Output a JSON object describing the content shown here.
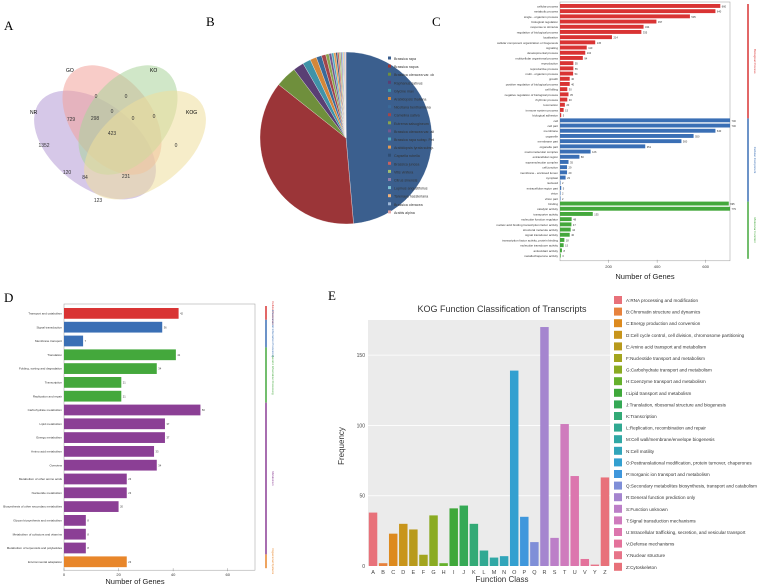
{
  "figure": {
    "panel_letters": [
      "A",
      "B",
      "C",
      "D",
      "E"
    ]
  },
  "chart_data": [
    {
      "type": "venn",
      "panel": "A",
      "sets": [
        "NR",
        "GO",
        "KO",
        "KOG"
      ],
      "colors": [
        "#b49ad6",
        "#f2a39a",
        "#a9d49a",
        "#eedf9c"
      ],
      "region_values": [
        "1352",
        "729",
        "0",
        "0",
        "0",
        "0",
        "298",
        "0",
        "0",
        "423",
        "120",
        "84",
        "231",
        "123"
      ]
    },
    {
      "type": "pie",
      "panel": "B",
      "labels": [
        "Brassica rapa",
        "Brassica napus",
        "Brassica oleracea var. oleracea",
        "Raphanus sativus",
        "Glycine max",
        "Arabidopsis thaliana",
        "Nicotiana benthamiana",
        "Camelina sativa",
        "Eutrema salsugineum",
        "Brassica oleracea var. alboglabra",
        "Brassica rapa subsp. Pekinensis",
        "Arabidopsis lyrata subsp. Lyrata",
        "Capsella rubella",
        "Brassica juncea",
        "Vitis vinifera",
        "Citrus sinensis",
        "Lupinus angustifolius",
        "Tarenaya hassleriana",
        "Brassica oleracea",
        "Arabis alpina"
      ],
      "values": [
        48.5,
        37.0,
        4.0,
        2.0,
        1.5,
        1.2,
        1.0,
        0.8,
        0.6,
        0.5,
        0.4,
        0.4,
        0.3,
        0.3,
        0.3,
        0.25,
        0.2,
        0.2,
        0.2,
        0.15
      ],
      "colors": [
        "#3b5f8e",
        "#9b3538",
        "#6f8f3c",
        "#5a3f74",
        "#3f93a8",
        "#d3873a",
        "#3a6a9a",
        "#a4454a",
        "#8aa44e",
        "#73588f",
        "#4fa6bb",
        "#e39b53",
        "#2f4e75",
        "#c9625f",
        "#a3be71",
        "#8f7dab",
        "#7bbfd0",
        "#f0b27b",
        "#9db7d6",
        "#e6a9a7"
      ]
    },
    {
      "type": "bar",
      "panel": "C",
      "orientation": "horizontal",
      "xlabel": "Number of Genes",
      "xticks": [
        "200",
        "400",
        "600"
      ],
      "xlim": [
        0,
        700
      ],
      "groups": [
        {
          "name": "Biological Process",
          "color": "#d93434"
        },
        {
          "name": "Cellular Component",
          "color": "#3a6fb5"
        },
        {
          "name": "Molecular Function",
          "color": "#44a83c"
        }
      ],
      "categories": [
        "cellular process",
        "metabolic process",
        "single - organism process",
        "biological regulation",
        "response to stimulus",
        "regulation of biological process",
        "localization",
        "cellular component organization or biogenesis",
        "signaling",
        "developmental process",
        "multicellular organismal process",
        "reproduction",
        "reproductive process",
        "multi - organism process",
        "growth",
        "positive regulation of biological process",
        "cell killing",
        "negative regulation of biological process",
        "rhythmic process",
        "locomotion",
        "immune system process",
        "biological adhesion",
        "cell",
        "cell part",
        "membrane",
        "organelle",
        "membrane part",
        "organelle part",
        "macromolecular complex",
        "extracellular region",
        "supramolecular complex",
        "cell junction",
        "membrane - enclosed lumen",
        "symplast",
        "nucleoid",
        "extracellular region part",
        "virion",
        "virion part",
        "binding",
        "catalytic activity",
        "transporter activity",
        "molecular function regulator",
        "nucleic acid binding transcription factor activity",
        "structural molecule activity",
        "signal transducer activity",
        "transcription factor activity, protein binding",
        "molecular transducer activity",
        "antioxidant activity",
        "metallochaperone activity"
      ],
      "values": [
        660,
        640,
        535,
        397,
        344,
        335,
        214,
        145,
        110,
        104,
        94,
        55,
        55,
        54,
        40,
        40,
        30,
        35,
        30,
        20,
        15,
        5,
        746,
        746,
        640,
        550,
        500,
        351,
        126,
        80,
        35,
        29,
        29,
        23,
        2,
        5,
        2,
        2,
        695,
        779,
        135,
        48,
        47,
        44,
        40,
        18,
        15,
        8,
        3
      ],
      "value_labels": [
        "660",
        "640",
        "535",
        "397",
        "344",
        "335",
        "214",
        "145",
        "110",
        "104",
        "94",
        "55",
        "55",
        "54",
        "40",
        "40",
        "30",
        "35",
        "30",
        "20",
        "15",
        "5",
        "746",
        "746",
        "640",
        "550",
        "500",
        "351",
        "126",
        "80",
        "35",
        "29",
        "29",
        "23",
        "2",
        "5",
        "2",
        "2",
        "695",
        "779",
        "135",
        "48",
        "47",
        "44",
        "40",
        "18",
        "15",
        "8",
        "3"
      ],
      "group_of": [
        0,
        0,
        0,
        0,
        0,
        0,
        0,
        0,
        0,
        0,
        0,
        0,
        0,
        0,
        0,
        0,
        0,
        0,
        0,
        0,
        0,
        0,
        1,
        1,
        1,
        1,
        1,
        1,
        1,
        1,
        1,
        1,
        1,
        1,
        1,
        1,
        1,
        1,
        2,
        2,
        2,
        2,
        2,
        2,
        2,
        2,
        2,
        2,
        2
      ]
    },
    {
      "type": "bar",
      "panel": "D",
      "orientation": "horizontal",
      "xlabel": "Number of Genes",
      "xticks": [
        "0",
        "20",
        "40",
        "60"
      ],
      "xlim": [
        0,
        70
      ],
      "groups": [
        {
          "name": "Cellular Processes",
          "color": "#d93434"
        },
        {
          "name": "Environmental Information Processing",
          "color": "#3a6fb5"
        },
        {
          "name": "Genetic Information Processing",
          "color": "#44a83c"
        },
        {
          "name": "Metabolism",
          "color": "#8b3f95"
        },
        {
          "name": "Organismal Systems",
          "color": "#e8862a"
        }
      ],
      "categories": [
        "Transport and catabolism",
        "Signal transduction",
        "Membrane transport",
        "Translation",
        "Folding, sorting and degradation",
        "Transcription",
        "Replication and repair",
        "Carbohydrate metabolism",
        "Lipid metabolism",
        "Energy metabolism",
        "Amino acid metabolism",
        "Overview",
        "Metabolism of other amino acids",
        "Nucleotide metabolism",
        "Biosynthesis of other secondary metabolites",
        "Glycan biosynthesis and metabolism",
        "Metabolism of cofactors and vitamins",
        "Metabolism of terpenoids and polyketides",
        "Environmental adaptation"
      ],
      "values": [
        42,
        36,
        7,
        41,
        34,
        21,
        21,
        50,
        37,
        37,
        33,
        34,
        23,
        23,
        20,
        8,
        8,
        8,
        23
      ],
      "value_labels": [
        "42",
        "36",
        "7",
        "41",
        "34",
        "21",
        "21",
        "50",
        "37",
        "37",
        "33",
        "34",
        "23",
        "23",
        "20",
        "8",
        "8",
        "8",
        "23"
      ],
      "group_of": [
        0,
        1,
        1,
        2,
        2,
        2,
        2,
        3,
        3,
        3,
        3,
        3,
        3,
        3,
        3,
        3,
        3,
        3,
        4
      ]
    },
    {
      "type": "bar",
      "panel": "E",
      "title": "KOG Function Classification of Transcripts",
      "xlabel": "Function Class",
      "ylabel": "Frequency",
      "ylim": [
        0,
        175
      ],
      "yticks": [
        0,
        50,
        100,
        150
      ],
      "categories": [
        "A",
        "B",
        "C",
        "D",
        "E",
        "F",
        "G",
        "H",
        "I",
        "J",
        "K",
        "L",
        "M",
        "N",
        "O",
        "P",
        "Q",
        "R",
        "S",
        "T",
        "U",
        "V",
        "Y",
        "Z"
      ],
      "values": [
        38,
        2,
        23,
        30,
        26,
        8,
        36,
        2,
        41,
        43,
        30,
        11,
        6,
        7,
        139,
        35,
        17,
        170,
        20,
        101,
        64,
        5,
        1,
        63
      ],
      "colors": [
        "#e8717a",
        "#e7823d",
        "#dd8a1e",
        "#c8951b",
        "#b89a1c",
        "#a3a51e",
        "#8aab22",
        "#65b12c",
        "#3fa83a",
        "#35a955",
        "#33aa76",
        "#31a992",
        "#30a8a5",
        "#31a5ba",
        "#33a0d0",
        "#3f97dc",
        "#7f8fd8",
        "#a585cf",
        "#bc7fc8",
        "#cf7bbd",
        "#dc76ae",
        "#e4729b",
        "#e77489",
        "#e8717a"
      ],
      "legend": [
        "A:RNA processing and modification",
        "B:Chromatin structure and dynamics",
        "C:Energy production and conversion",
        "D:Cell cycle control, cell division, chromosome partitioning",
        "E:Amino acid transport and metabolism",
        "F:Nucleotide transport and metabolism",
        "G:Carbohydrate transport and metabolism",
        "H:Coenzyme transport and metabolism",
        "I:Lipid transport and metabolism",
        "J:Translation, ribosomal structure and biogenesis",
        "K:Transcription",
        "L:Replication, recombination and repair",
        "M:Cell wall/membrane/envelope biogenesis",
        "N:Cell motility",
        "O:Posttranslational modification, protein turnover, chaperones",
        "P:Inorganic ion transport and metabolism",
        "Q:Secondary metabolites biosynthesis, transport and catabolism",
        "R:General function prediction only",
        "S:Function unknown",
        "T:Signal transduction mechanisms",
        "U:Intracellular trafficking, secretion, and vesicular transport",
        "V:Defense mechanisms",
        "Y:Nuclear structure",
        "Z:Cytoskeleton"
      ]
    }
  ]
}
